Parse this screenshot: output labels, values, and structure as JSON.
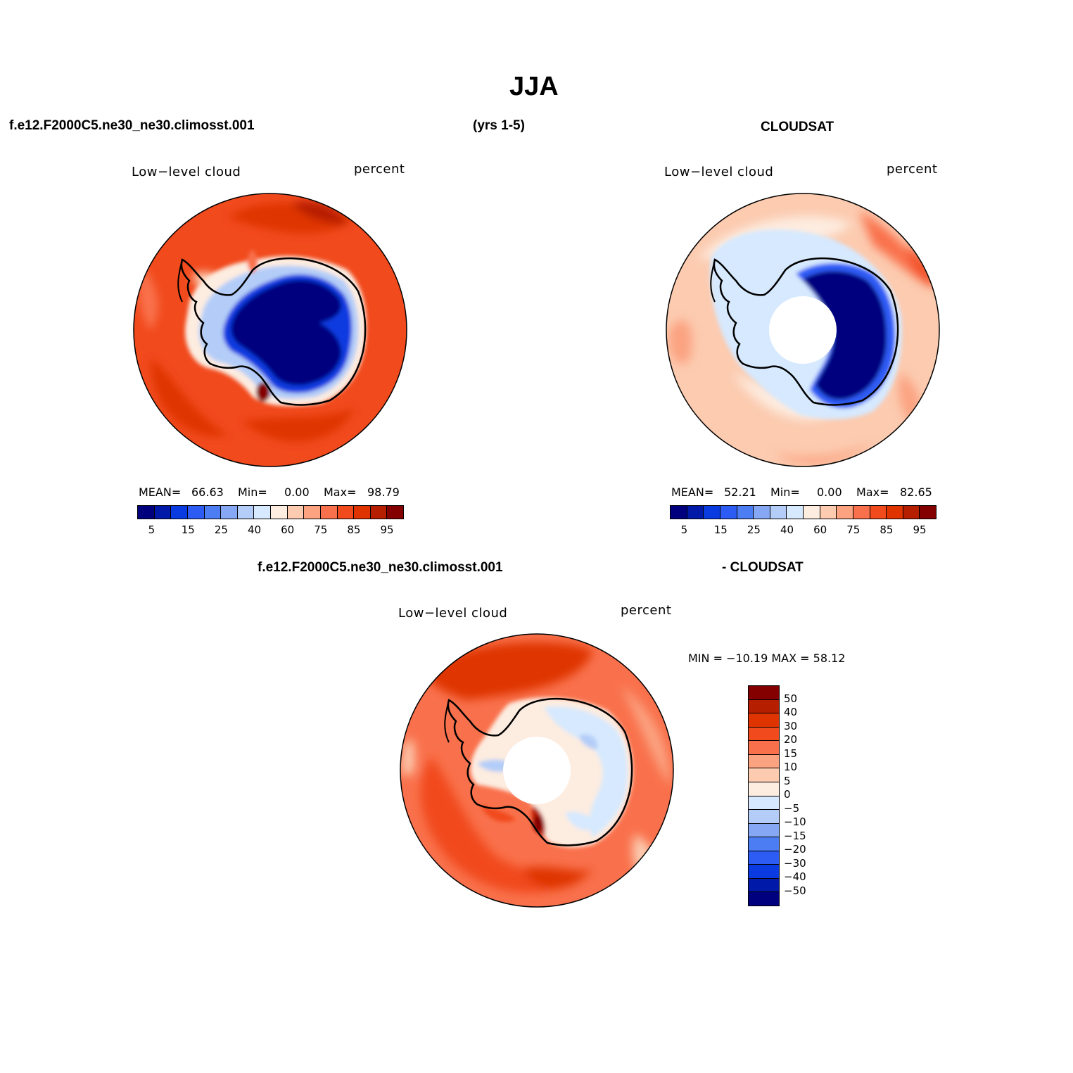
{
  "page": {
    "season": "JJA",
    "case_name": "f.e12.F2000C5.ne30_ne30.climosst.001",
    "years": "(yrs 1-5)",
    "obs_name": "CLOUDSAT"
  },
  "panels": {
    "model": {
      "left_label": "Low−level cloud",
      "right_label": "percent",
      "mean_label": "MEAN=",
      "mean": "66.63",
      "min_label": "Min=",
      "min": "0.00",
      "max_label": "Max=",
      "max": "98.79"
    },
    "obs": {
      "left_label": "Low−level cloud",
      "right_label": "percent",
      "mean_label": "MEAN=",
      "mean": "52.21",
      "min_label": "Min=",
      "min": "0.00",
      "max_label": "Max=",
      "max": "82.65"
    },
    "diff": {
      "title_left": "f.e12.F2000C5.ne30_ne30.climosst.001",
      "title_right": "- CLOUDSAT",
      "left_label": "Low−level cloud",
      "right_label": "percent",
      "minmax_text": "MIN = −10.19 MAX =  58.12"
    }
  },
  "colorbars": {
    "abs_colors": [
      "#00007f",
      "#0019a8",
      "#0a3be0",
      "#2d5cf5",
      "#4d7df2",
      "#86a8f4",
      "#b4cdf8",
      "#d6e9fe",
      "#fdece0",
      "#fccbb0",
      "#fba381",
      "#f9714c",
      "#f14a1d",
      "#df3400",
      "#b61e00",
      "#840000"
    ],
    "abs_tick_labels": [
      "5",
      "15",
      "25",
      "40",
      "60",
      "75",
      "85",
      "95"
    ],
    "diff_colors": [
      "#840000",
      "#b61e00",
      "#df3400",
      "#f14a1d",
      "#f9714c",
      "#fba381",
      "#fccbb0",
      "#fdece0",
      "#d6e9fe",
      "#b4cdf8",
      "#86a8f4",
      "#4d7df2",
      "#2d5cf5",
      "#0a3be0",
      "#0019a8",
      "#00007f"
    ],
    "diff_tick_labels": [
      "50",
      "40",
      "30",
      "20",
      "15",
      "10",
      "5",
      "0",
      "−5",
      "−10",
      "−15",
      "−20",
      "−30",
      "−40",
      "−50"
    ]
  }
}
